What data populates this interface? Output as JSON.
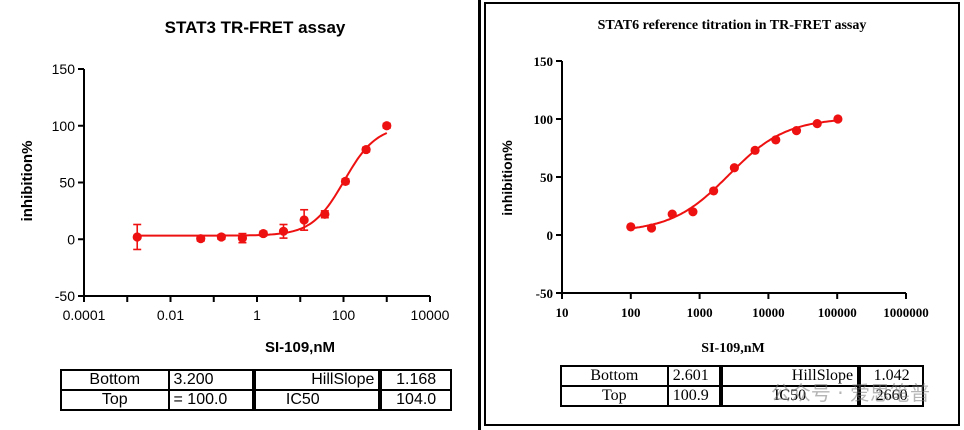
{
  "chart_data": [
    {
      "type": "scatter",
      "title": "STAT3 TR-FRET assay",
      "xlabel": "SI-109,nM",
      "ylabel": "inhibition%",
      "x_scale": "log",
      "xlim": [
        0.0001,
        10000
      ],
      "ylim": [
        -50,
        150
      ],
      "x_ticks": [
        "0.0001",
        "0.01",
        "1",
        "100",
        "10000"
      ],
      "y_ticks": [
        "150",
        "100",
        "50",
        "0",
        "-50"
      ],
      "grid": false,
      "series": [
        {
          "x": [
            0.0017,
            0.05,
            0.15,
            0.46,
            1.4,
            4.1,
            12.3,
            37,
            111,
            333,
            1000
          ],
          "y": [
            2,
            0.5,
            2,
            1,
            5,
            7,
            17,
            22,
            51,
            79,
            100
          ],
          "err": [
            11,
            2,
            2,
            4,
            2,
            6,
            9,
            3,
            2,
            2,
            2
          ],
          "fit": {
            "bottom": 3.2,
            "top": 100.0,
            "ic50": 104.0,
            "hill": 1.168
          }
        }
      ],
      "table": [
        [
          "Bottom",
          "3.200",
          "HillSlope",
          "1.168"
        ],
        [
          "Top",
          "= 100.0",
          "IC50",
          "104.0"
        ]
      ]
    },
    {
      "type": "scatter",
      "title": "STAT6 reference titration in TR-FRET assay",
      "xlabel": "SI-109,nM",
      "ylabel": "inhibition%",
      "x_scale": "log",
      "xlim": [
        10,
        1000000
      ],
      "ylim": [
        -50,
        150
      ],
      "x_ticks": [
        "10",
        "100",
        "1000",
        "10000",
        "100000",
        "1000000"
      ],
      "y_ticks": [
        "150",
        "100",
        "50",
        "0",
        "-50"
      ],
      "grid": false,
      "series": [
        {
          "x": [
            100,
            200,
            400,
            800,
            1600,
            3200,
            6400,
            12800,
            25600,
            51200,
            102400
          ],
          "y": [
            7,
            6,
            18,
            20,
            38,
            58,
            73,
            82,
            90,
            96,
            100
          ],
          "fit": {
            "bottom": 2.601,
            "top": 100.9,
            "ic50": 2660,
            "hill": 1.042
          }
        }
      ],
      "table": [
        [
          "Bottom",
          "2.601",
          "HillSlope",
          "1.042"
        ],
        [
          "Top",
          "100.9",
          "IC50",
          "2660"
        ]
      ]
    }
  ],
  "watermark": "公众号 · 爱思笔普",
  "colors": {
    "marks": "#e11111",
    "axes": "#000000"
  }
}
